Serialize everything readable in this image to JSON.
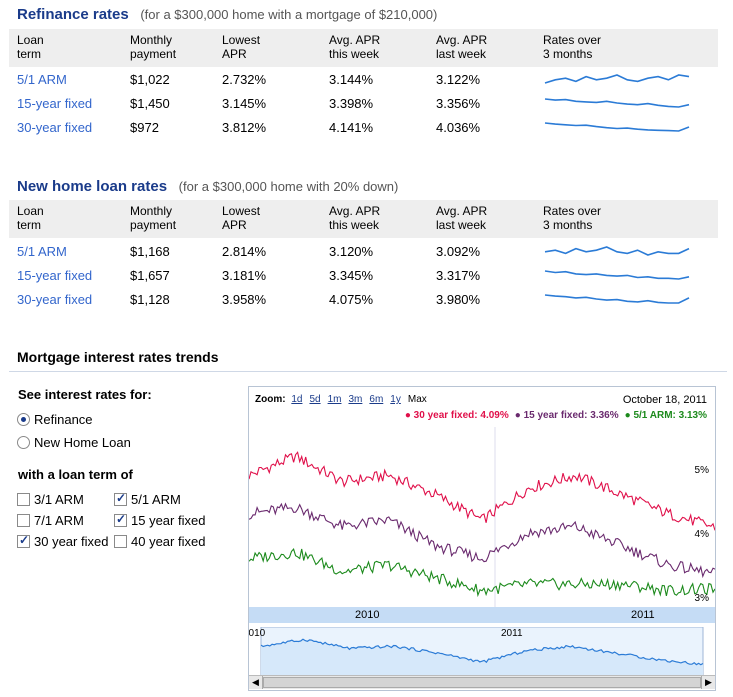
{
  "refinance": {
    "title": "Refinance rates",
    "subtitle": "(for a $300,000 home with a mortgage of $210,000)",
    "headers": [
      "Loan\nterm",
      "Monthly\npayment",
      "Lowest\nAPR",
      "Avg. APR\nthis week",
      "Avg. APR\nlast week",
      "Rates over\n3 months"
    ],
    "rows": [
      {
        "term": "5/1 ARM",
        "payment": "$1,022",
        "lowest": "2.732%",
        "this_week": "3.144%",
        "last_week": "3.122%",
        "spark": [
          3.1,
          3.12,
          3.13,
          3.11,
          3.14,
          3.12,
          3.13,
          3.15,
          3.12,
          3.11,
          3.13,
          3.14,
          3.12,
          3.15,
          3.14
        ]
      },
      {
        "term": "15-year fixed",
        "payment": "$1,450",
        "lowest": "3.145%",
        "this_week": "3.398%",
        "last_week": "3.356%",
        "spark": [
          3.5,
          3.48,
          3.49,
          3.46,
          3.45,
          3.44,
          3.46,
          3.43,
          3.41,
          3.4,
          3.42,
          3.39,
          3.37,
          3.36,
          3.4
        ]
      },
      {
        "term": "30-year fixed",
        "payment": "$972",
        "lowest": "3.812%",
        "this_week": "4.141%",
        "last_week": "4.036%",
        "spark": [
          4.25,
          4.22,
          4.2,
          4.18,
          4.19,
          4.15,
          4.12,
          4.1,
          4.11,
          4.08,
          4.06,
          4.05,
          4.04,
          4.03,
          4.14
        ]
      }
    ]
  },
  "new_home": {
    "title": "New home loan rates",
    "subtitle": "(for a $300,000 home with 20% down)",
    "headers": [
      "Loan\nterm",
      "Monthly\npayment",
      "Lowest\nAPR",
      "Avg. APR\nthis week",
      "Avg. APR\nlast week",
      "Rates over\n3 months"
    ],
    "rows": [
      {
        "term": "5/1 ARM",
        "payment": "$1,168",
        "lowest": "2.814%",
        "this_week": "3.120%",
        "last_week": "3.092%",
        "spark": [
          3.1,
          3.11,
          3.09,
          3.12,
          3.1,
          3.11,
          3.13,
          3.1,
          3.09,
          3.11,
          3.08,
          3.1,
          3.09,
          3.09,
          3.12
        ]
      },
      {
        "term": "15-year fixed",
        "payment": "$1,657",
        "lowest": "3.181%",
        "this_week": "3.345%",
        "last_week": "3.317%",
        "spark": [
          3.42,
          3.4,
          3.41,
          3.38,
          3.37,
          3.38,
          3.36,
          3.35,
          3.36,
          3.33,
          3.34,
          3.32,
          3.32,
          3.31,
          3.34
        ]
      },
      {
        "term": "30-year fixed",
        "payment": "$1,128",
        "lowest": "3.958%",
        "this_week": "4.075%",
        "last_week": "3.980%",
        "spark": [
          4.12,
          4.1,
          4.09,
          4.07,
          4.08,
          4.05,
          4.03,
          4.04,
          4.01,
          4.0,
          4.02,
          3.99,
          3.98,
          3.98,
          4.07
        ]
      }
    ]
  },
  "trends": {
    "title": "Mortgage interest rates trends",
    "see_rates_label": "See interest rates for:",
    "radio_options": [
      {
        "label": "Refinance",
        "selected": true
      },
      {
        "label": "New Home Loan",
        "selected": false
      }
    ],
    "loan_term_label": "with a loan term of",
    "checkboxes": [
      {
        "label": "3/1 ARM",
        "checked": false
      },
      {
        "label": "5/1 ARM",
        "checked": true
      },
      {
        "label": "7/1 ARM",
        "checked": false
      },
      {
        "label": "15 year fixed",
        "checked": true
      },
      {
        "label": "30 year fixed",
        "checked": true
      },
      {
        "label": "40 year fixed",
        "checked": false
      }
    ]
  },
  "chart": {
    "zoom_label": "Zoom:",
    "zoom_options": [
      "1d",
      "5d",
      "1m",
      "3m",
      "6m",
      "1y",
      "Max"
    ],
    "date": "October 18, 2011",
    "legend": [
      {
        "label": "30 year fixed: 4.09%",
        "color": "#e0104a"
      },
      {
        "label": "15 year fixed: 3.36%",
        "color": "#6a2a6e"
      },
      {
        "label": "5/1 ARM: 3.13%",
        "color": "#1c8a1c"
      }
    ],
    "y_ticks": [
      "5%",
      "4%",
      "3%"
    ],
    "x_ticks": [
      "2010",
      "2011"
    ],
    "nav_ticks": [
      "2010",
      "2011"
    ]
  },
  "chart_data": {
    "type": "line",
    "x": [
      "2009-05",
      "2009-08",
      "2009-11",
      "2010-02",
      "2010-05",
      "2010-08",
      "2010-11",
      "2011-02",
      "2011-05",
      "2011-08",
      "2011-10"
    ],
    "series": [
      {
        "name": "30 year fixed",
        "values": [
          4.9,
          5.2,
          4.8,
          4.9,
          4.6,
          4.2,
          4.7,
          4.9,
          4.6,
          4.3,
          4.09
        ]
      },
      {
        "name": "15 year fixed",
        "values": [
          4.3,
          4.4,
          4.1,
          4.2,
          3.8,
          3.6,
          4.0,
          4.1,
          3.8,
          3.5,
          3.36
        ]
      },
      {
        "name": "5/1 ARM",
        "values": [
          3.6,
          3.7,
          3.4,
          3.5,
          3.3,
          3.1,
          3.2,
          3.2,
          3.2,
          3.1,
          3.13
        ]
      }
    ],
    "ylim": [
      3,
      5.5
    ]
  }
}
